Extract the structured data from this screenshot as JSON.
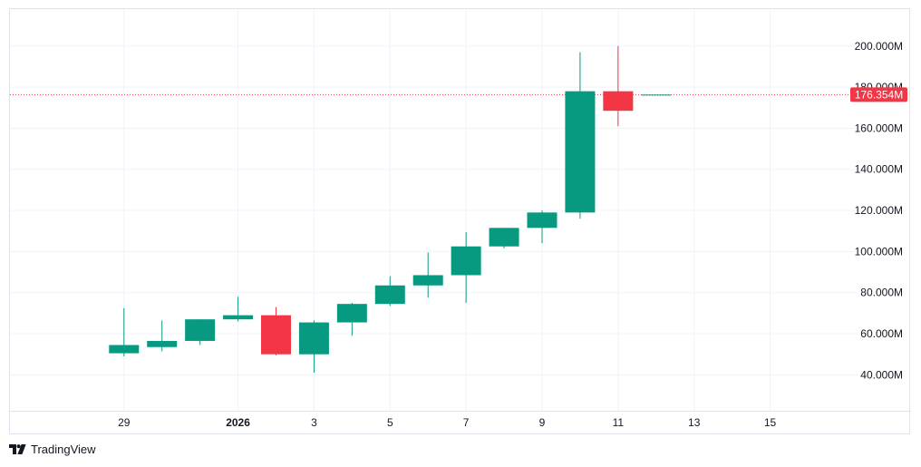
{
  "brand": {
    "name": "TradingView",
    "icon": "tradingview-logo-icon"
  },
  "colors": {
    "up": "#089981",
    "down": "#f23645",
    "grid": "#f0f3fa",
    "border": "#e0e3eb",
    "text": "#131722"
  },
  "chart_data": {
    "type": "candlestick",
    "y_unit": "M",
    "ylim": [
      22.5,
      218
    ],
    "y_ticks": [
      40,
      60,
      80,
      100,
      120,
      140,
      160,
      180,
      200
    ],
    "y_tick_labels": [
      "40.000M",
      "60.000M",
      "80.000M",
      "100.000M",
      "120.000M",
      "140.000M",
      "160.000M",
      "180.000M",
      "200.000M"
    ],
    "x_ticks": [
      {
        "label": "29",
        "index": 0,
        "bold": false
      },
      {
        "label": "2026",
        "index": 3,
        "bold": true
      },
      {
        "label": "3",
        "index": 5,
        "bold": false
      },
      {
        "label": "5",
        "index": 7,
        "bold": false
      },
      {
        "label": "7",
        "index": 9,
        "bold": false
      },
      {
        "label": "9",
        "index": 11,
        "bold": false
      },
      {
        "label": "11",
        "index": 13,
        "bold": false
      },
      {
        "label": "13",
        "index": 15,
        "bold": false
      },
      {
        "label": "15",
        "index": 17,
        "bold": false
      }
    ],
    "x_range": [
      -3,
      19.3
    ],
    "candles": [
      {
        "index": 0,
        "open": 50.5,
        "high": 72.5,
        "low": 49.0,
        "close": 54.5
      },
      {
        "index": 1,
        "open": 53.5,
        "high": 66.5,
        "low": 51.5,
        "close": 56.5
      },
      {
        "index": 2,
        "open": 56.5,
        "high": 67.0,
        "low": 54.5,
        "close": 67.0
      },
      {
        "index": 3,
        "open": 67.0,
        "high": 78.0,
        "low": 66.0,
        "close": 69.0
      },
      {
        "index": 4,
        "open": 69.0,
        "high": 73.0,
        "low": 49.5,
        "close": 50.0
      },
      {
        "index": 5,
        "open": 50.0,
        "high": 66.5,
        "low": 41.0,
        "close": 65.5
      },
      {
        "index": 6,
        "open": 65.5,
        "high": 75.0,
        "low": 59.0,
        "close": 74.5
      },
      {
        "index": 7,
        "open": 74.5,
        "high": 88.0,
        "low": 73.5,
        "close": 83.5
      },
      {
        "index": 8,
        "open": 83.5,
        "high": 99.5,
        "low": 77.5,
        "close": 88.5
      },
      {
        "index": 9,
        "open": 88.5,
        "high": 109.5,
        "low": 75.0,
        "close": 102.5
      },
      {
        "index": 10,
        "open": 102.5,
        "high": 111.5,
        "low": 101.5,
        "close": 111.5
      },
      {
        "index": 11,
        "open": 111.5,
        "high": 120.0,
        "low": 104.0,
        "close": 119.0
      },
      {
        "index": 12,
        "open": 119.0,
        "high": 197.0,
        "low": 116.0,
        "close": 178.0
      },
      {
        "index": 13,
        "open": 178.0,
        "high": 200.0,
        "low": 161.0,
        "close": 168.5
      },
      {
        "index": 14,
        "open": 176.354,
        "high": 176.354,
        "low": 176.354,
        "close": 176.354
      }
    ],
    "last_price": 176.354,
    "last_price_label": "176.354M",
    "grid": true
  }
}
